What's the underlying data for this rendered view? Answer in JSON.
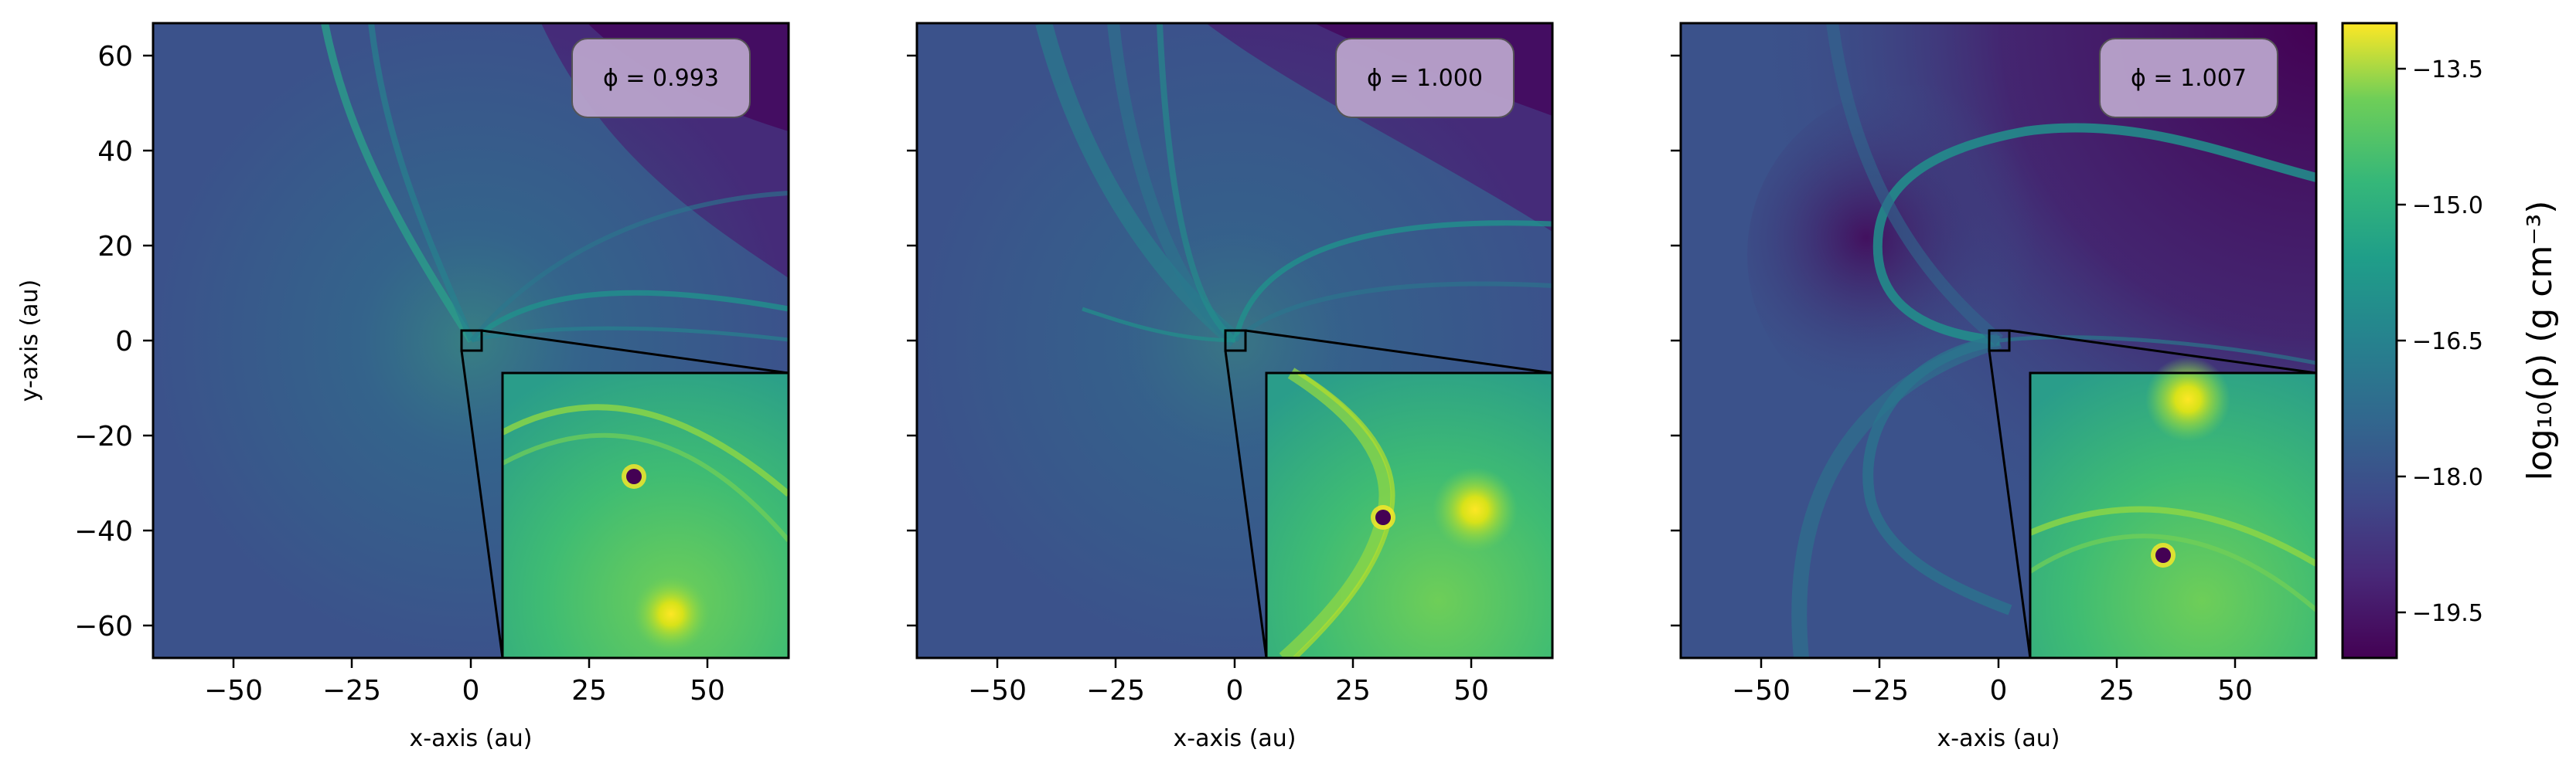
{
  "chart_data": {
    "type": "heatmap",
    "xlim": [
      -67,
      67
    ],
    "ylim": [
      -67,
      67
    ],
    "panels": [
      {
        "phase_label": "ϕ = 0.993",
        "xlabel": "x-axis (au)",
        "ylabel": "y-axis (au)",
        "xticks": [
          "−50",
          "−25",
          "0",
          "25",
          "50"
        ],
        "yticks": [
          "60",
          "40",
          "20",
          "0",
          "−20",
          "−40",
          "−60"
        ]
      },
      {
        "phase_label": "ϕ = 1.000",
        "xlabel": "x-axis (au)",
        "ylabel": "",
        "xticks": [
          "−50",
          "−25",
          "0",
          "25",
          "50"
        ],
        "yticks": []
      },
      {
        "phase_label": "ϕ = 1.007",
        "xlabel": "x-axis (au)",
        "ylabel": "",
        "xticks": [
          "−50",
          "−25",
          "0",
          "25",
          "50"
        ],
        "yticks": []
      }
    ],
    "colorbar": {
      "label": "log₁₀(ρ) (g cm⁻³)",
      "range": [
        -20.0,
        -13.0
      ],
      "colormap": "viridis",
      "ticks": [
        "−13.5",
        "−15.0",
        "−16.5",
        "−18.0",
        "−19.5"
      ],
      "tick_values": [
        -13.5,
        -15.0,
        -16.5,
        -18.0,
        -19.5
      ]
    },
    "colors": {
      "cmap_low": "#440154",
      "cmap_mid": "#21918c",
      "cmap_high": "#fde725",
      "box_fill": "#b9a3cc"
    }
  }
}
